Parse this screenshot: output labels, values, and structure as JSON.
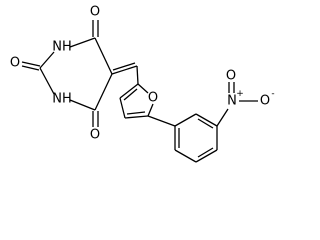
{
  "atoms": [
    {
      "label": "O"
    },
    {
      "label": "NH"
    },
    {
      "label": "O"
    },
    {
      "label": "NH"
    },
    {
      "label": "O"
    },
    {
      "label": "O"
    },
    {
      "label": "N",
      "charge": "+"
    },
    {
      "label": "O"
    },
    {
      "label": "O",
      "charge": "-"
    }
  ]
}
